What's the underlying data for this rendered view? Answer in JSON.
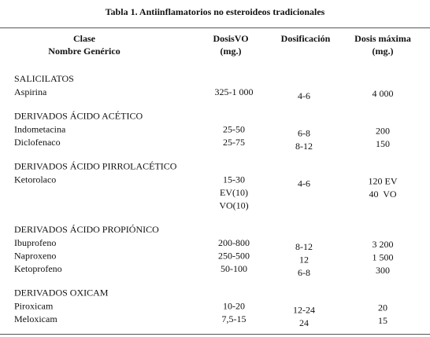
{
  "title": "Tabla 1. Antiinflamatorios no esteroideos tradicionales",
  "table": {
    "headers": [
      [
        "Clase",
        "Nombre Genérico"
      ],
      [
        "DosisVO",
        "(mg.)"
      ],
      [
        "Dosificación"
      ],
      [
        "Dosis máxima",
        "(mg.)"
      ]
    ],
    "groups": [
      {
        "name": "SALICILATOS",
        "rows": [
          [
            "Aspirina",
            [
              "325-1 000"
            ],
            [
              "4-6"
            ],
            [
              "4 000"
            ]
          ]
        ]
      },
      {
        "name": "DERIVADOS ÁCIDO ACÉTICO",
        "rows": [
          [
            "Indometacina",
            [
              "25-50"
            ],
            [
              "6-8"
            ],
            [
              "200"
            ]
          ],
          [
            "Diclofenaco",
            [
              "25-75"
            ],
            [
              "8-12"
            ],
            [
              "150"
            ]
          ]
        ]
      },
      {
        "name": "DERIVADOS ÁCIDO PIRROLACÉTICO",
        "rows": [
          [
            "Ketorolaco",
            [
              "15-30",
              "EV(10)",
              "VO(10)"
            ],
            [
              "4-6"
            ],
            [
              "120 EV",
              "40  VO"
            ]
          ]
        ]
      },
      {
        "name": "DERIVADOS ÁCIDO PROPIÓNICO",
        "rows": [
          [
            "Ibuprofeno",
            [
              "200-800"
            ],
            [
              "8-12"
            ],
            [
              "3 200"
            ]
          ],
          [
            "Naproxeno",
            [
              "250-500"
            ],
            [
              "12"
            ],
            [
              "1 500"
            ]
          ],
          [
            "Ketoprofeno",
            [
              "50-100"
            ],
            [
              "6-8"
            ],
            [
              "300"
            ]
          ]
        ]
      },
      {
        "name": "DERIVADOS OXICAM",
        "rows": [
          [
            "Piroxicam",
            [
              "10-20"
            ],
            [
              "12-24"
            ],
            [
              "20"
            ]
          ],
          [
            "Meloxicam",
            [
              "7,5-15"
            ],
            [
              "24"
            ],
            [
              "15"
            ]
          ]
        ]
      }
    ]
  }
}
